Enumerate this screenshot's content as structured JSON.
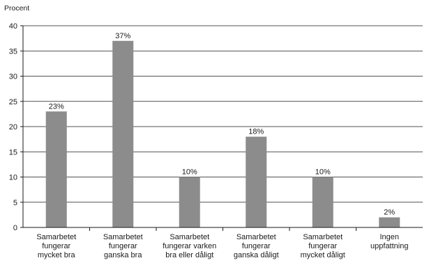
{
  "chart_data": {
    "type": "bar",
    "ylabel": "Procent",
    "categories": [
      [
        "Samarbetet",
        "fungerar",
        "mycket bra"
      ],
      [
        "Samarbetet",
        "fungerar",
        "ganska bra"
      ],
      [
        "Samarbetet",
        "fungerar varken",
        "bra eller dåligt"
      ],
      [
        "Samarbetet",
        "fungerar",
        "ganska dåligt"
      ],
      [
        "Samarbetet",
        "fungerar",
        "mycket dåligt"
      ],
      [
        "Ingen",
        "uppfattning"
      ]
    ],
    "values": [
      23,
      37,
      10,
      18,
      10,
      2
    ],
    "data_labels": [
      "23%",
      "37%",
      "10%",
      "18%",
      "10%",
      "2%"
    ],
    "yticks": [
      0,
      5,
      10,
      15,
      20,
      25,
      30,
      35,
      40
    ],
    "ylim": [
      0,
      40
    ],
    "grid": true,
    "colors": {
      "bar": "#8c8c8c",
      "grid": "#1a1a1a",
      "axis": "#1a1a1a"
    }
  }
}
